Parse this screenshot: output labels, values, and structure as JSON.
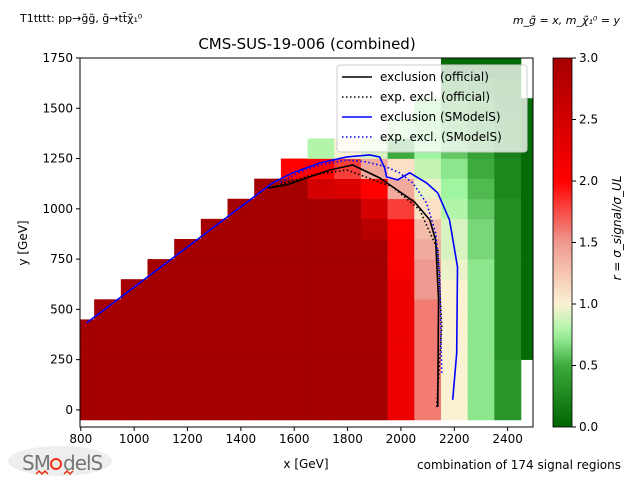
{
  "chart_data": {
    "type": "heatmap",
    "title": "CMS-SUS-19-006 (combined)",
    "top_left_label": "T1tttt: pp→g̃g̃, g̃→tt̄χ̃₁⁰",
    "top_right_label": "m_g̃ = x, m_χ̃₁⁰ = y",
    "xlabel": "x [GeV]",
    "ylabel": "y [GeV]",
    "footer": "combination of 174 signal regions",
    "xlim": [
      797,
      2495
    ],
    "ylim": [
      -85,
      1750
    ],
    "xticks": [
      800,
      1000,
      1200,
      1400,
      1600,
      1800,
      2000,
      2200,
      2400
    ],
    "yticks": [
      0,
      250,
      500,
      750,
      1000,
      1250,
      1500,
      1750
    ],
    "colorbar": {
      "label": "r = σ_signal/σ_UL",
      "range": [
        0,
        3
      ],
      "ticks": [
        "0.0",
        "0.5",
        "1.0",
        "1.5",
        "2.0",
        "2.5",
        "3.0"
      ],
      "colors": [
        [
          0,
          "#006400"
        ],
        [
          0.5,
          "#3caa3c"
        ],
        [
          0.75,
          "#a0f5a0"
        ],
        [
          1.0,
          "#fbf1d3"
        ],
        [
          1.5,
          "#ef9a90"
        ],
        [
          2.0,
          "#ff0000"
        ],
        [
          3.0,
          "#a50000"
        ]
      ]
    },
    "grid": false,
    "legend_placement": "top-right",
    "legend": [
      {
        "label": "exclusion (official)",
        "color": "#000000",
        "style": "solid"
      },
      {
        "label": "exp. excl. (official)",
        "color": "#000000",
        "style": "dotted"
      },
      {
        "label": "exclusion (SModelS)",
        "color": "#0000ff",
        "style": "solid"
      },
      {
        "label": "exp. excl. (SModelS)",
        "color": "#0000ff",
        "style": "dotted"
      }
    ],
    "x": [
      800,
      900,
      1000,
      1100,
      1200,
      1300,
      1400,
      1500,
      1600,
      1700,
      1800,
      1900,
      2000,
      2100,
      2200,
      2300,
      2400,
      2500
    ],
    "y": [
      0,
      100,
      200,
      300,
      400,
      500,
      600,
      700,
      800,
      900,
      1000,
      1100,
      1200,
      1300,
      1400,
      1500,
      1600,
      1700
    ],
    "z": [
      [
        3,
        3,
        3,
        3,
        3,
        3,
        3,
        3,
        3,
        3,
        3,
        3,
        2.2,
        1.6,
        1.0,
        0.7,
        0.35,
        null
      ],
      [
        3,
        3,
        3,
        3,
        3,
        3,
        3,
        3,
        3,
        3,
        3,
        3,
        2.2,
        1.6,
        1.0,
        0.7,
        0.35,
        null
      ],
      [
        3,
        3,
        3,
        3,
        3,
        3,
        3,
        3,
        3,
        3,
        3,
        3,
        2.2,
        1.6,
        1.0,
        0.7,
        0.35,
        null
      ],
      [
        3,
        3,
        3,
        3,
        3,
        3,
        3,
        3,
        3,
        3,
        3,
        3,
        2.2,
        1.6,
        1.0,
        0.7,
        0.3,
        0.05
      ],
      [
        3,
        3,
        3,
        3,
        3,
        3,
        3,
        3,
        3,
        3,
        3,
        3,
        2.2,
        1.6,
        1.0,
        0.7,
        0.3,
        0.05
      ],
      [
        null,
        3,
        3,
        3,
        3,
        3,
        3,
        3,
        3,
        3,
        3,
        3,
        2.2,
        1.6,
        1.0,
        0.7,
        0.3,
        0.05
      ],
      [
        null,
        null,
        3,
        3,
        3,
        3,
        3,
        3,
        3,
        3,
        3,
        3,
        2.2,
        1.5,
        1.0,
        0.7,
        0.3,
        0.05
      ],
      [
        null,
        null,
        null,
        3,
        3,
        3,
        3,
        3,
        3,
        3,
        3,
        3,
        2.1,
        1.5,
        0.95,
        0.7,
        0.3,
        0.05
      ],
      [
        null,
        null,
        null,
        null,
        3,
        3,
        3,
        3,
        3,
        3,
        3,
        3,
        2.1,
        1.4,
        0.9,
        0.65,
        0.3,
        0.05
      ],
      [
        null,
        null,
        null,
        null,
        null,
        3,
        3,
        3,
        3,
        3,
        3,
        2.8,
        2.0,
        1.3,
        0.9,
        0.65,
        0.3,
        0.05
      ],
      [
        null,
        null,
        null,
        null,
        null,
        null,
        3,
        3,
        3,
        3,
        3,
        2.5,
        1.8,
        1.1,
        0.8,
        0.6,
        0.3,
        0.05
      ],
      [
        null,
        null,
        null,
        null,
        null,
        null,
        null,
        3,
        3,
        2.5,
        2.4,
        2.0,
        1.4,
        0.95,
        0.75,
        0.55,
        0.25,
        0.05
      ],
      [
        null,
        null,
        null,
        null,
        null,
        null,
        null,
        null,
        2.0,
        2.0,
        1.8,
        1.4,
        1.1,
        0.85,
        0.7,
        0.5,
        0.25,
        0.05
      ],
      [
        null,
        null,
        null,
        null,
        null,
        null,
        null,
        null,
        null,
        0.8,
        1.0,
        0.9,
        0.5,
        0.75,
        0.6,
        0.45,
        0.2,
        0.05
      ],
      [
        null,
        null,
        null,
        null,
        null,
        null,
        null,
        null,
        null,
        null,
        null,
        null,
        0.8,
        0.7,
        0.55,
        0.4,
        0.2,
        0.05
      ],
      [
        null,
        null,
        null,
        null,
        null,
        null,
        null,
        null,
        null,
        null,
        null,
        null,
        null,
        0.7,
        0.5,
        0.35,
        0.15,
        0.05
      ],
      [
        null,
        null,
        null,
        null,
        null,
        null,
        null,
        null,
        null,
        null,
        null,
        null,
        null,
        null,
        0.3,
        0.2,
        0.1,
        null
      ],
      [
        null,
        null,
        null,
        null,
        null,
        null,
        null,
        null,
        null,
        null,
        null,
        null,
        null,
        null,
        0.05,
        0.05,
        0.05,
        null
      ]
    ],
    "contours": [
      {
        "name": "exclusion (official)",
        "color": "#000000",
        "dash": "",
        "points": [
          [
            2138,
            15
          ],
          [
            2141,
            547
          ],
          [
            2130,
            845
          ],
          [
            2108,
            945
          ],
          [
            2051,
            1034
          ],
          [
            1920,
            1154
          ],
          [
            1819,
            1218
          ],
          [
            1733,
            1193
          ],
          [
            1572,
            1119
          ],
          [
            1501,
            1104
          ]
        ]
      },
      {
        "name": "exp. excl. (official)",
        "color": "#000000",
        "dash": "1.5,2.5",
        "points": [
          [
            2134,
            15
          ],
          [
            2153,
            413
          ],
          [
            2138,
            796
          ],
          [
            2070,
            995
          ],
          [
            1969,
            1109
          ],
          [
            1797,
            1193
          ],
          [
            1669,
            1169
          ],
          [
            1519,
            1109
          ]
        ]
      },
      {
        "name": "exclusion (SModelS)",
        "color": "#0000ff",
        "dash": "",
        "points": [
          [
            2194,
            50
          ],
          [
            2209,
            283
          ],
          [
            2212,
            711
          ],
          [
            2182,
            945
          ],
          [
            2138,
            1079
          ],
          [
            2096,
            1129
          ],
          [
            2033,
            1179
          ],
          [
            1988,
            1144
          ],
          [
            1946,
            1159
          ],
          [
            1939,
            1203
          ],
          [
            1920,
            1258
          ],
          [
            1883,
            1268
          ],
          [
            1797,
            1258
          ],
          [
            1695,
            1228
          ],
          [
            1594,
            1179
          ],
          [
            1519,
            1129
          ],
          [
            822,
            433
          ]
        ]
      },
      {
        "name": "exp. excl. (SModelS)",
        "color": "#0000ff",
        "dash": "1.5,2.5",
        "points": [
          [
            2153,
            184
          ],
          [
            2145,
            681
          ],
          [
            2130,
            880
          ],
          [
            2096,
            1029
          ],
          [
            2044,
            1129
          ],
          [
            1995,
            1179
          ],
          [
            1946,
            1208
          ],
          [
            1872,
            1233
          ],
          [
            1797,
            1243
          ],
          [
            1695,
            1218
          ],
          [
            1621,
            1184
          ],
          [
            1546,
            1129
          ]
        ]
      }
    ]
  },
  "logo": {
    "text": "SModelS"
  }
}
